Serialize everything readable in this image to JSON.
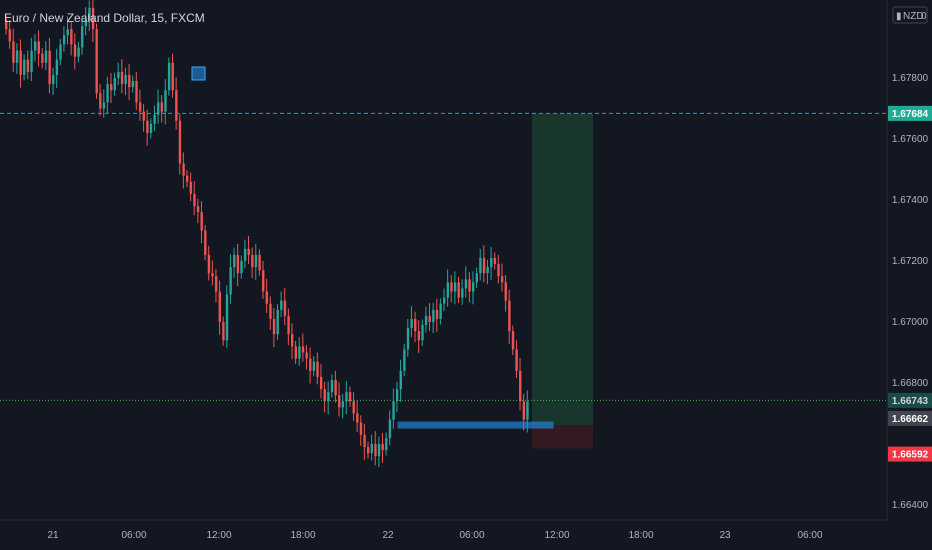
{
  "title": "Euro / New Zealand Dollar, 15, FXCM",
  "currency_label": "NZD",
  "currency_suffix": "0",
  "colors": {
    "background": "#131722",
    "up": "#26a69a",
    "down": "#ef5350",
    "target_zone": "#1b3a2e",
    "stop_zone": "#3a1a20",
    "dashed_line": "#2196f3",
    "tag_green": "#22ab94",
    "tag_dark": "#434651",
    "tag_red": "#f23645",
    "marker": "#2196f3"
  },
  "chart_data": {
    "type": "candlestick",
    "title": "Euro / New Zealand Dollar, 15, FXCM",
    "ylim": [
      1.663,
      1.6806
    ],
    "y_ticks": [
      "1.67800",
      "1.67600",
      "1.67400",
      "1.67200",
      "1.67000",
      "1.66800",
      "1.66400"
    ],
    "x_ticks": [
      "21",
      "06:00",
      "12:00",
      "18:00",
      "22",
      "06:00",
      "12:00",
      "18:00",
      "23",
      "06:00"
    ],
    "price_tags": {
      "target": "1.67684",
      "current": "1.66743",
      "entry": "1.66662",
      "stop": "1.66592"
    },
    "levels": {
      "target": 1.67684,
      "current": 1.66743,
      "entry": 1.66662,
      "stop": 1.66592
    },
    "closes": [
      1.6796,
      1.6792,
      1.6785,
      1.6789,
      1.6781,
      1.6786,
      1.6782,
      1.6789,
      1.6792,
      1.6788,
      1.6785,
      1.6789,
      1.6778,
      1.6781,
      1.6786,
      1.6791,
      1.6794,
      1.6796,
      1.6791,
      1.6787,
      1.679,
      1.6797,
      1.6799,
      1.6803,
      1.6796,
      1.6775,
      1.677,
      1.6772,
      1.6778,
      1.6776,
      1.678,
      1.6782,
      1.6778,
      1.6781,
      1.6777,
      1.6779,
      1.6772,
      1.6769,
      1.6766,
      1.6762,
      1.6765,
      1.6768,
      1.6772,
      1.6769,
      1.6776,
      1.6785,
      1.6776,
      1.6766,
      1.6752,
      1.6748,
      1.6746,
      1.6742,
      1.6738,
      1.6736,
      1.673,
      1.6722,
      1.6716,
      1.6715,
      1.671,
      1.67,
      1.6694,
      1.6709,
      1.6718,
      1.6722,
      1.6716,
      1.672,
      1.6724,
      1.6722,
      1.6718,
      1.6722,
      1.6717,
      1.671,
      1.6706,
      1.6701,
      1.6696,
      1.6704,
      1.6707,
      1.6702,
      1.6696,
      1.6692,
      1.6688,
      1.6692,
      1.669,
      1.6688,
      1.6684,
      1.6687,
      1.6682,
      1.6678,
      1.6674,
      1.6677,
      1.6681,
      1.6676,
      1.6672,
      1.6674,
      1.6677,
      1.6674,
      1.667,
      1.6667,
      1.6663,
      1.6659,
      1.6657,
      1.666,
      1.6656,
      1.666,
      1.6658,
      1.6662,
      1.6668,
      1.6674,
      1.6678,
      1.6684,
      1.6691,
      1.6698,
      1.6701,
      1.6697,
      1.6694,
      1.6699,
      1.6702,
      1.67,
      1.6704,
      1.6701,
      1.6706,
      1.6708,
      1.6713,
      1.671,
      1.6713,
      1.6708,
      1.6711,
      1.6714,
      1.671,
      1.6713,
      1.6716,
      1.6721,
      1.6716,
      1.6718,
      1.6721,
      1.6719,
      1.6715,
      1.6713,
      1.6707,
      1.6697,
      1.6691,
      1.6684,
      1.6674,
      1.6668,
      1.6674
    ]
  }
}
